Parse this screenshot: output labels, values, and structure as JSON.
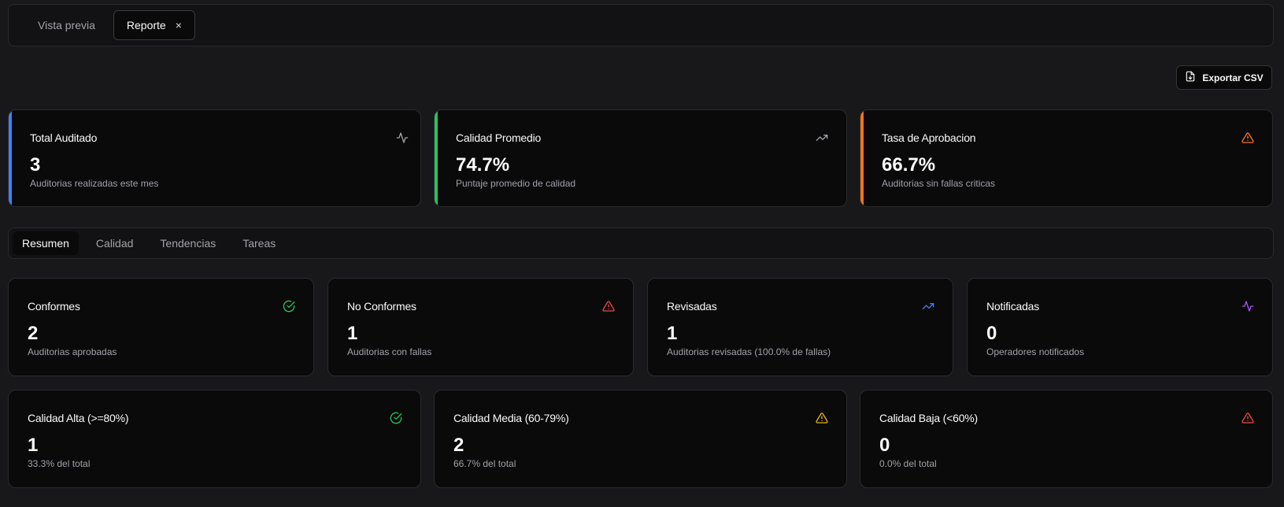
{
  "window_tabs": [
    {
      "label": "Vista previa",
      "active": false
    },
    {
      "label": "Reporte",
      "active": true,
      "close": "×"
    }
  ],
  "toolbar": {
    "export_label": "Exportar CSV"
  },
  "summary_cards": [
    {
      "title": "Total Auditado",
      "value": "3",
      "desc": "Auditorias realizadas este mes",
      "icon": "activity-icon",
      "accent": "#3b82f6"
    },
    {
      "title": "Calidad Promedio",
      "value": "74.7%",
      "desc": "Puntaje promedio de calidad",
      "icon": "trending-up-icon",
      "accent": "#22c55e"
    },
    {
      "title": "Tasa de Aprobacion",
      "value": "66.7%",
      "desc": "Auditorias sin fallas criticas",
      "icon": "warning-icon",
      "accent": "#f97316"
    }
  ],
  "section_tabs": [
    "Resumen",
    "Calidad",
    "Tendencias",
    "Tareas"
  ],
  "status_cards": [
    {
      "title": "Conformes",
      "value": "2",
      "desc": "Auditorias aprobadas",
      "icon": "check-circle-icon",
      "icon_color": "#22c55e"
    },
    {
      "title": "No Conformes",
      "value": "1",
      "desc": "Auditorias con fallas",
      "icon": "warning-icon",
      "icon_color": "#ef4444"
    },
    {
      "title": "Revisadas",
      "value": "1",
      "desc": "Auditorias revisadas (100.0% de fallas)",
      "icon": "trending-up-icon",
      "icon_color": "#3b82f6"
    },
    {
      "title": "Notificadas",
      "value": "0",
      "desc": "Operadores notificados",
      "icon": "activity-icon",
      "icon_color": "#a855f7"
    }
  ],
  "quality_cards": [
    {
      "title": "Calidad Alta (>=80%)",
      "value": "1",
      "desc": "33.3% del total",
      "icon": "check-circle-icon",
      "icon_color": "#22c55e"
    },
    {
      "title": "Calidad Media (60-79%)",
      "value": "2",
      "desc": "66.7% del total",
      "icon": "warning-icon",
      "icon_color": "#eab308"
    },
    {
      "title": "Calidad Baja (<60%)",
      "value": "0",
      "desc": "0.0% del total",
      "icon": "warning-icon",
      "icon_color": "#ef4444"
    }
  ],
  "colors": {
    "background": "#18181b",
    "card": "#0a0a0a",
    "summary_icon_1": "#a1a1aa",
    "summary_icon_2": "#a1a1aa",
    "summary_icon_3": "#f97316"
  }
}
